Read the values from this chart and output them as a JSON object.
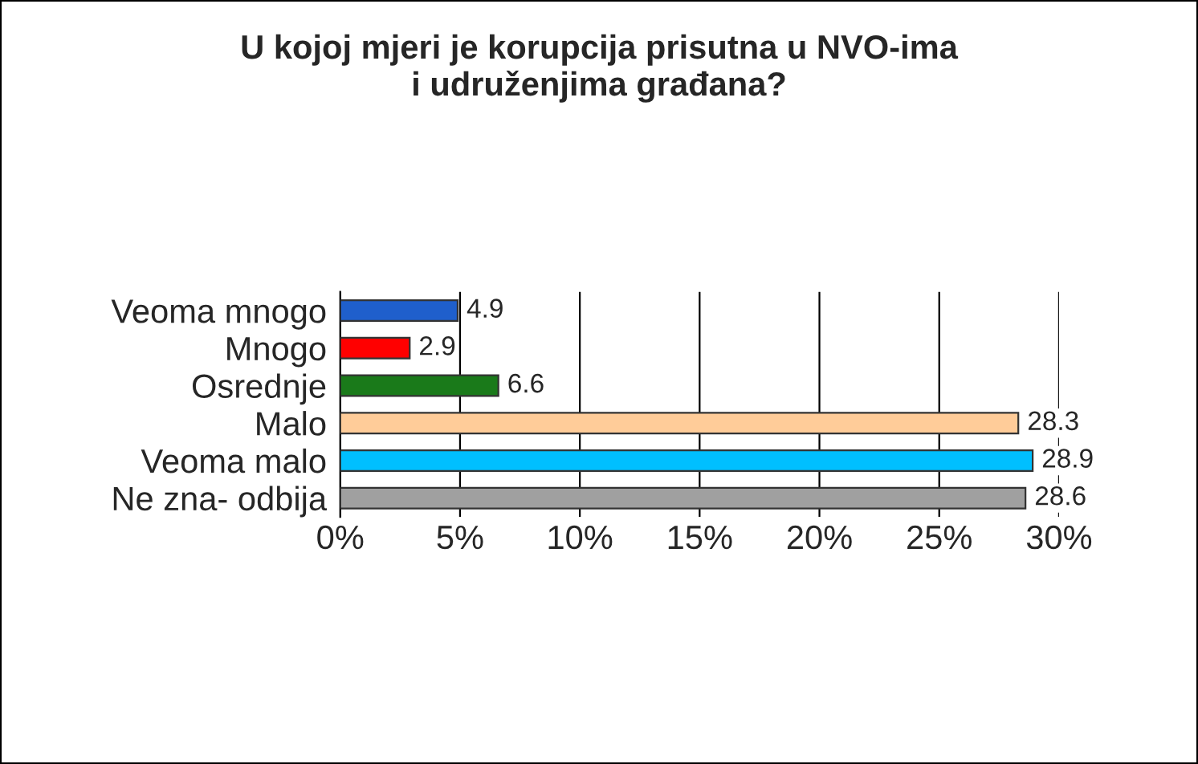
{
  "chart_data": {
    "type": "bar",
    "orientation": "horizontal",
    "title": "U kojoj mjeri je korupcija prisutna u NVO-ima\ni udruženjima građana?",
    "categories": [
      "Veoma mnogo",
      "Mnogo",
      "Osrednje",
      "Malo",
      "Veoma malo",
      "Ne zna- odbija"
    ],
    "values": [
      4.9,
      2.9,
      6.6,
      28.3,
      28.9,
      28.6
    ],
    "colors": [
      "#1f5fcc",
      "#ff0000",
      "#1a7a1a",
      "#ffcc99",
      "#00bfff",
      "#a0a0a0"
    ],
    "data_labels": true,
    "xlim": [
      0,
      30
    ],
    "xticks": [
      {
        "value": 0,
        "label": "0%"
      },
      {
        "value": 5,
        "label": "5%"
      },
      {
        "value": 10,
        "label": "10%"
      },
      {
        "value": 15,
        "label": "15%"
      },
      {
        "value": 20,
        "label": "20%"
      },
      {
        "value": 25,
        "label": "25%"
      },
      {
        "value": 30,
        "label": "30%"
      }
    ],
    "grid": "x",
    "legend": false
  }
}
